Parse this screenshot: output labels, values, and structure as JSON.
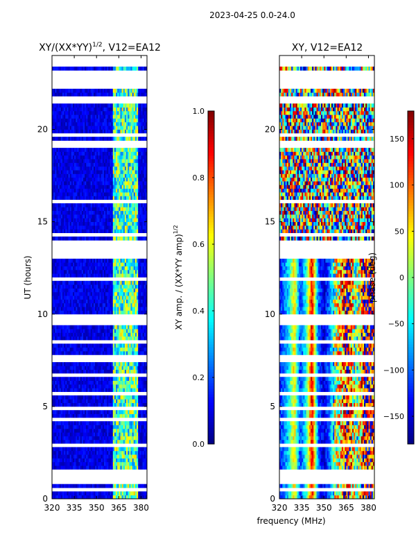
{
  "figure_title": "2023-04-25 0.0-24.0",
  "shared_xlabel": "frequency (MHz)",
  "chart_data": [
    {
      "type": "heatmap",
      "title": "XY/(XX*YY)^{1/2}, V12=EA12",
      "title_main": "XY/(XX*YY)",
      "title_exp": "1/2",
      "title_suffix": ", V12=EA12",
      "xlabel": "frequency (MHz)",
      "ylabel": "UT (hours)",
      "xlim": [
        320,
        384
      ],
      "ylim": [
        0,
        24
      ],
      "xticks": [
        "320",
        "335",
        "350",
        "365",
        "380"
      ],
      "xtick_values": [
        320,
        335,
        350,
        365,
        380
      ],
      "yticks": [
        "0",
        "5",
        "10",
        "15",
        "20"
      ],
      "ytick_values": [
        0,
        5,
        10,
        15,
        20
      ],
      "colorbar": {
        "label": "XY amp. / (XX*YY amp)^{1/2}",
        "label_main": "XY amp. / (XX*YY amp)",
        "label_exp": "1/2",
        "range": [
          0.0,
          1.0
        ],
        "ticks": [
          "0.0",
          "0.2",
          "0.4",
          "0.6",
          "0.8",
          "1.0"
        ],
        "tick_values": [
          0.0,
          0.2,
          0.4,
          0.6,
          0.8,
          1.0
        ],
        "colormap": "jet"
      },
      "flagged_gaps_hours": [
        [
          0.4,
          0.5
        ],
        [
          0.9,
          1.1
        ],
        [
          1.3,
          1.5
        ],
        [
          2.8,
          3.0
        ],
        [
          4.2,
          4.4
        ],
        [
          4.9,
          5.0
        ],
        [
          5.7,
          5.8
        ],
        [
          6.6,
          6.7
        ],
        [
          7.5,
          7.7
        ],
        [
          8.4,
          8.5
        ],
        [
          9.4,
          9.5
        ],
        [
          9.7,
          9.9
        ],
        [
          11.9,
          12.0
        ],
        [
          13.1,
          13.9
        ],
        [
          14.3,
          14.4
        ],
        [
          16.1,
          16.2
        ],
        [
          19.0,
          19.3
        ],
        [
          19.6,
          19.7
        ],
        [
          21.5,
          21.7
        ],
        [
          22.2,
          23.1
        ],
        [
          23.5,
          24.0
        ]
      ],
      "high_amplitude_band_mhz": [
        361,
        378
      ],
      "background_amplitude": 0.1,
      "band_amplitude": 0.45
    },
    {
      "type": "heatmap",
      "title": "XY, V12=EA12",
      "xlabel": "frequency (MHz)",
      "ylabel": "",
      "xlim": [
        320,
        384
      ],
      "ylim": [
        0,
        24
      ],
      "xticks": [
        "320",
        "335",
        "350",
        "365",
        "380"
      ],
      "xtick_values": [
        320,
        335,
        350,
        365,
        380
      ],
      "yticks": [
        "0",
        "5",
        "10",
        "15",
        "20"
      ],
      "ytick_values": [
        0,
        5,
        10,
        15,
        20
      ],
      "colorbar": {
        "label": "phase (deg)",
        "range": [
          -180,
          180
        ],
        "ticks": [
          "−150",
          "−100",
          "−50",
          "0",
          "50",
          "100",
          "150"
        ],
        "tick_values": [
          -150,
          -100,
          -50,
          0,
          50,
          100,
          150
        ],
        "colormap": "jet"
      },
      "flagged_gaps_hours": [
        [
          0.4,
          0.5
        ],
        [
          0.9,
          1.1
        ],
        [
          1.3,
          1.5
        ],
        [
          2.8,
          3.0
        ],
        [
          4.2,
          4.4
        ],
        [
          4.9,
          5.0
        ],
        [
          5.7,
          5.8
        ],
        [
          6.6,
          6.7
        ],
        [
          7.5,
          7.7
        ],
        [
          8.4,
          8.5
        ],
        [
          9.4,
          9.5
        ],
        [
          9.7,
          9.9
        ],
        [
          11.9,
          12.0
        ],
        [
          13.1,
          13.9
        ],
        [
          14.3,
          14.4
        ],
        [
          16.1,
          16.2
        ],
        [
          19.0,
          19.3
        ],
        [
          19.6,
          19.7
        ],
        [
          21.5,
          21.7
        ],
        [
          22.2,
          23.1
        ],
        [
          23.5,
          24.0
        ]
      ],
      "stripe_phase_pattern_mhz": [
        [
          320,
          -130
        ],
        [
          326,
          -60
        ],
        [
          330,
          60
        ],
        [
          334,
          -120
        ],
        [
          338,
          -40
        ],
        [
          342,
          150
        ],
        [
          346,
          -100
        ],
        [
          350,
          -150
        ],
        [
          354,
          -90
        ],
        [
          358,
          20
        ],
        [
          362,
          60
        ],
        [
          366,
          160
        ],
        [
          372,
          -30
        ],
        [
          378,
          170
        ],
        [
          384,
          120
        ]
      ]
    }
  ]
}
